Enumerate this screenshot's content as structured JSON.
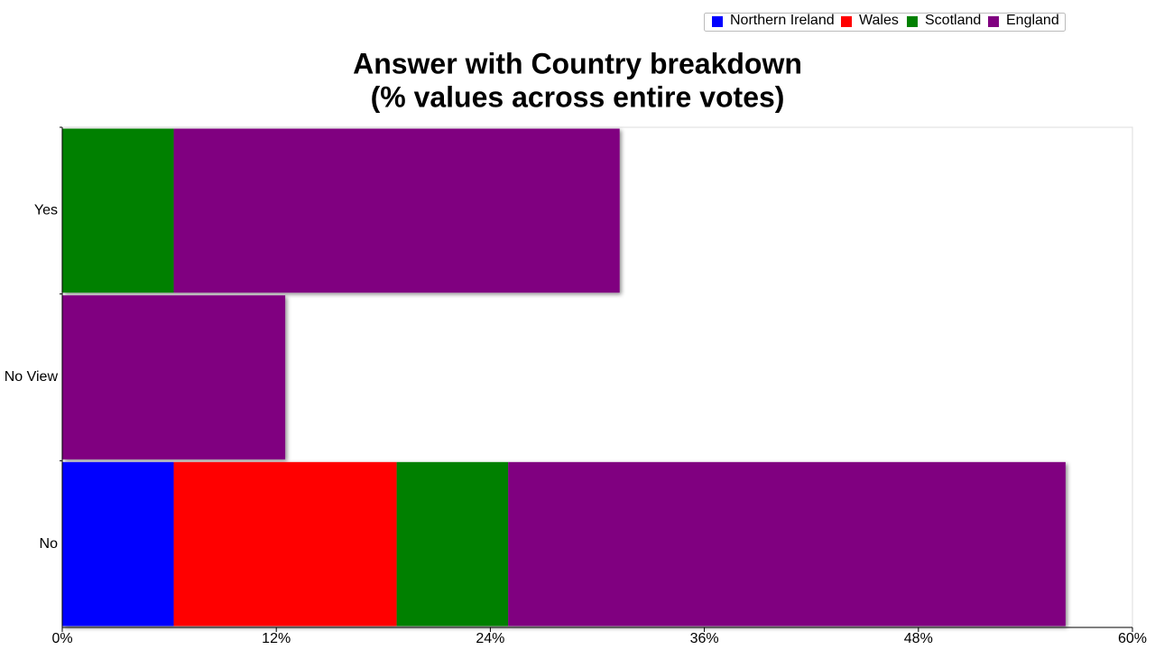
{
  "chart_data": {
    "type": "stacked-bar-horizontal",
    "title": "Answer with Country breakdown",
    "subtitle": "(% values across entire votes)",
    "categories": [
      "Yes",
      "No View",
      "No"
    ],
    "series": [
      {
        "name": "Northern Ireland",
        "color": "#0000ff",
        "values": [
          0,
          0,
          6.25
        ]
      },
      {
        "name": "Wales",
        "color": "#ff0000",
        "values": [
          0,
          0,
          12.5
        ]
      },
      {
        "name": "Scotland",
        "color": "#008000",
        "values": [
          6.25,
          0,
          6.25
        ]
      },
      {
        "name": "England",
        "color": "#800080",
        "values": [
          25,
          12.5,
          31.25
        ]
      }
    ],
    "xlim": [
      0,
      60
    ],
    "xticks": [
      {
        "value": 0,
        "label": "0%"
      },
      {
        "value": 12,
        "label": "12%"
      },
      {
        "value": 24,
        "label": "24%"
      },
      {
        "value": 36,
        "label": "36%"
      },
      {
        "value": 48,
        "label": "48%"
      },
      {
        "value": 60,
        "label": "60%"
      }
    ],
    "legend": "top-right"
  }
}
